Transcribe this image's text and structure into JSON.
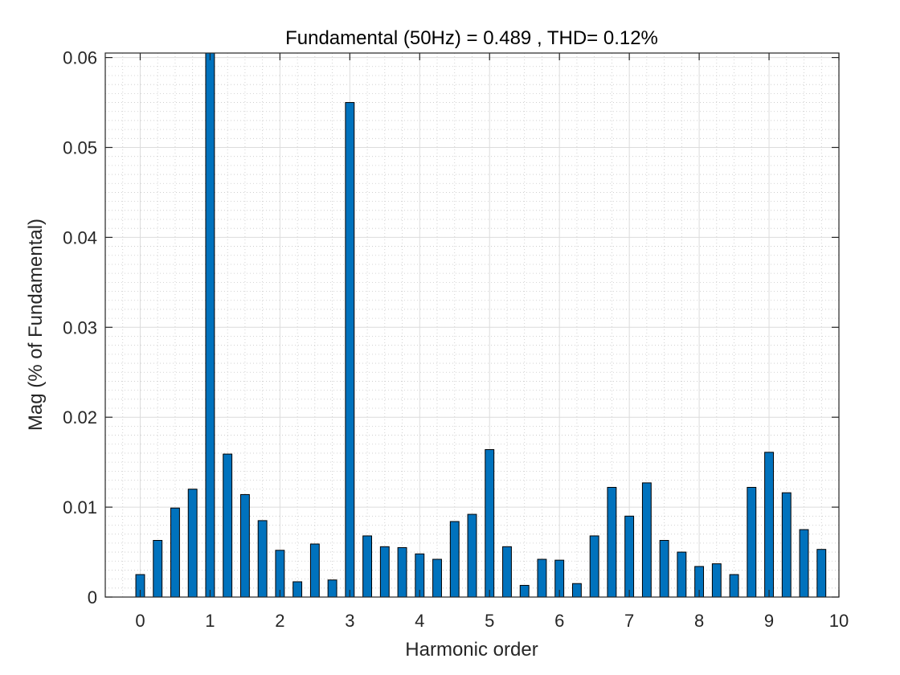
{
  "chart_data": {
    "type": "bar",
    "title": "Fundamental (50Hz) = 0.489 , THD= 0.12%",
    "xlabel": "Harmonic order",
    "ylabel": "Mag (% of Fundamental)",
    "xlim": [
      -0.5,
      10
    ],
    "ylim": [
      0,
      0.0605
    ],
    "x_ticks": [
      0,
      1,
      2,
      3,
      4,
      5,
      6,
      7,
      8,
      9,
      10
    ],
    "y_ticks": [
      0,
      0.01,
      0.02,
      0.03,
      0.04,
      0.05,
      0.06
    ],
    "y_tick_labels": [
      "0",
      "0.01",
      "0.02",
      "0.03",
      "0.04",
      "0.05",
      "0.06"
    ],
    "grid": true,
    "minor_grid": true,
    "bar_color": "#0072BD",
    "bar_edge_color": "#000000",
    "x": [
      0,
      0.25,
      0.5,
      0.75,
      1,
      1.25,
      1.5,
      1.75,
      2,
      2.25,
      2.5,
      2.75,
      3,
      3.25,
      3.5,
      3.75,
      4,
      4.25,
      4.5,
      4.75,
      5,
      5.25,
      5.5,
      5.75,
      6,
      6.25,
      6.5,
      6.75,
      7,
      7.25,
      7.5,
      7.75,
      8,
      8.25,
      8.5,
      8.75,
      9,
      9.25,
      9.5,
      9.75
    ],
    "values": [
      0.0025,
      0.0063,
      0.0099,
      0.012,
      0.0605,
      0.0159,
      0.0114,
      0.0085,
      0.0052,
      0.0017,
      0.0059,
      0.0019,
      0.055,
      0.0068,
      0.0056,
      0.0055,
      0.0048,
      0.0042,
      0.0084,
      0.0092,
      0.0164,
      0.0056,
      0.0013,
      0.0042,
      0.0041,
      0.0015,
      0.0068,
      0.0122,
      0.009,
      0.0127,
      0.0063,
      0.005,
      0.0034,
      0.0037,
      0.0025,
      0.0122,
      0.0161,
      0.0116,
      0.0075,
      0.0053
    ]
  }
}
